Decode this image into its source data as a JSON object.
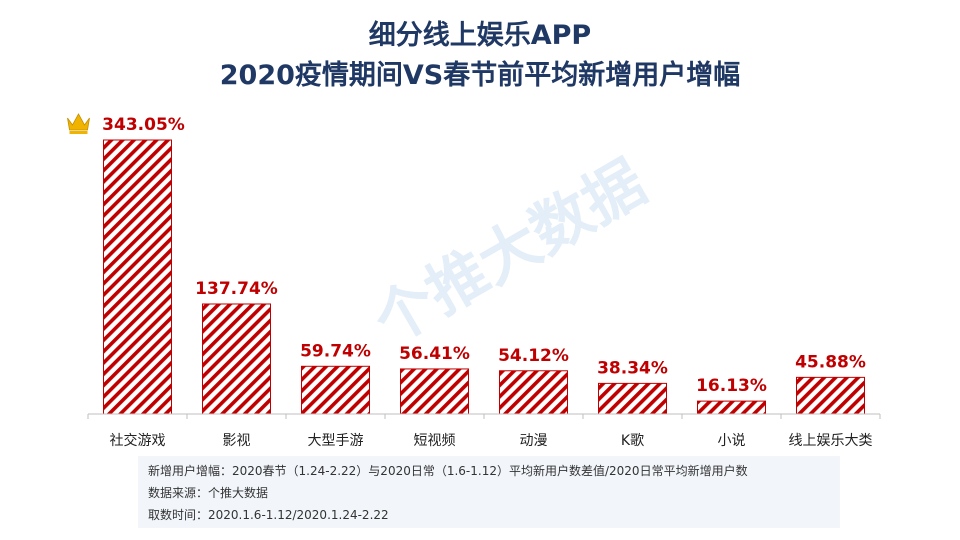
{
  "title_line1": "细分线上娱乐APP",
  "title_line2": "2020疫情期间VS春节前平均新增用户增幅",
  "watermark": "个推大数据",
  "notes": {
    "definition": "新增用户增幅：2020春节（1.24-2.22）与2020日常（1.6-1.12）平均新用户数差值/2020日常平均新增用户数",
    "source": "数据来源：个推大数据",
    "period": "取数时间：2020.1.6-1.12/2020.1.24-2.22"
  },
  "colors": {
    "title": "#1f3864",
    "bar": "#c00000",
    "label": "#c00000",
    "crown": "#f0b400"
  },
  "chart_data": {
    "type": "bar",
    "categories": [
      "社交游戏",
      "影视",
      "大型手游",
      "短视频",
      "动漫",
      "K歌",
      "小说",
      "线上娱乐大类"
    ],
    "values": [
      343.05,
      137.74,
      59.74,
      56.41,
      54.12,
      38.34,
      16.13,
      45.88
    ],
    "labels": [
      "343.05%",
      "137.74%",
      "59.74%",
      "56.41%",
      "54.12%",
      "38.34%",
      "16.13%",
      "45.88%"
    ],
    "ylim": [
      0,
      343.05
    ],
    "bar_fill": "diagonal red-white stripes",
    "top_marker": "crown-icon"
  }
}
